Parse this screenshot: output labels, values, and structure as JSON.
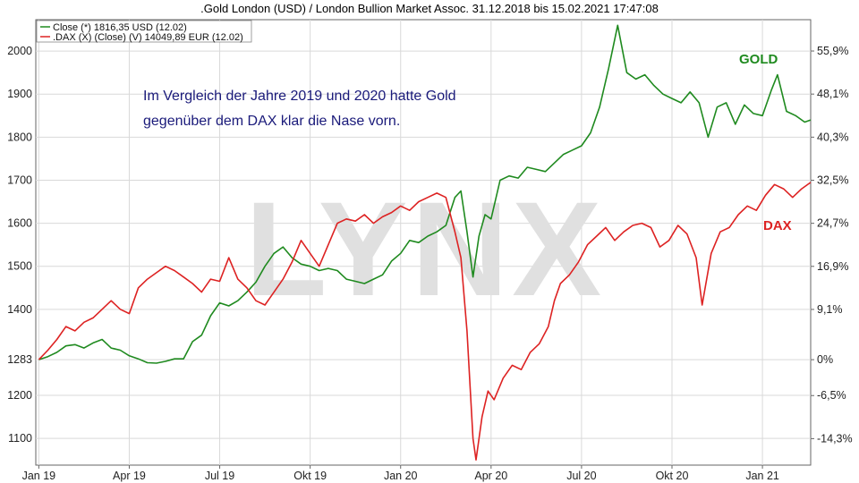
{
  "chart_data": {
    "type": "line",
    "title": ".Gold London (USD) / London Bullion Market Assoc. 31.12.2018 bis 15.02.2021 17:47:08",
    "watermark": "LYNX",
    "annotation_lines": [
      "Im Vergleich der Jahre 2019 und 2020 hatte Gold",
      "gegenüber dem DAX klar die Nase vorn."
    ],
    "x_tick_labels": [
      "Jan 19",
      "Apr 19",
      "Jul 19",
      "Okt 19",
      "Jan 20",
      "Apr 20",
      "Jul 20",
      "Okt 20",
      "Jan 21"
    ],
    "x_ticks_month_index": [
      0,
      3,
      6,
      9,
      12,
      15,
      18,
      21,
      24
    ],
    "x_range_month_index": [
      -0.1,
      25.6
    ],
    "y_left": {
      "ylim": [
        1038,
        2073
      ],
      "ticks": [
        1100,
        1200,
        1283,
        1400,
        1500,
        1600,
        1700,
        1800,
        1900,
        2000
      ],
      "tick_labels": [
        "1100",
        "1200",
        "1283",
        "1400",
        "1500",
        "1600",
        "1700",
        "1800",
        "1900",
        "2000"
      ]
    },
    "y_right": {
      "ticks": [
        -14.3,
        -6.5,
        0,
        9.1,
        16.9,
        24.7,
        32.5,
        40.3,
        48.1,
        55.9
      ],
      "tick_labels": [
        "-14,3%",
        "-6,5%",
        "0%",
        "9,1%",
        "16,9%",
        "24,7%",
        "32,5%",
        "40,3%",
        "48,1%",
        "55,9%"
      ],
      "base_value": 1283
    },
    "grid": true,
    "legend_position": "top-left",
    "series": [
      {
        "name": "GOLD",
        "legend": "Close (*) 1816,35 USD (12.02)",
        "label": "GOLD",
        "color": "#1f8a1f",
        "points": [
          [
            0,
            1283
          ],
          [
            0.3,
            1290
          ],
          [
            0.6,
            1300
          ],
          [
            0.9,
            1315
          ],
          [
            1.2,
            1318
          ],
          [
            1.5,
            1310
          ],
          [
            1.8,
            1322
          ],
          [
            2.1,
            1330
          ],
          [
            2.4,
            1310
          ],
          [
            2.7,
            1305
          ],
          [
            3.0,
            1292
          ],
          [
            3.3,
            1285
          ],
          [
            3.6,
            1276
          ],
          [
            3.9,
            1275
          ],
          [
            4.2,
            1279
          ],
          [
            4.5,
            1285
          ],
          [
            4.8,
            1285
          ],
          [
            5.1,
            1325
          ],
          [
            5.4,
            1340
          ],
          [
            5.7,
            1385
          ],
          [
            6.0,
            1415
          ],
          [
            6.3,
            1408
          ],
          [
            6.6,
            1420
          ],
          [
            6.9,
            1440
          ],
          [
            7.2,
            1463
          ],
          [
            7.5,
            1500
          ],
          [
            7.8,
            1530
          ],
          [
            8.1,
            1545
          ],
          [
            8.4,
            1520
          ],
          [
            8.7,
            1505
          ],
          [
            9.0,
            1500
          ],
          [
            9.3,
            1490
          ],
          [
            9.6,
            1495
          ],
          [
            9.9,
            1490
          ],
          [
            10.2,
            1470
          ],
          [
            10.5,
            1465
          ],
          [
            10.8,
            1460
          ],
          [
            11.1,
            1470
          ],
          [
            11.4,
            1480
          ],
          [
            11.7,
            1512
          ],
          [
            12.0,
            1530
          ],
          [
            12.3,
            1560
          ],
          [
            12.6,
            1555
          ],
          [
            12.9,
            1570
          ],
          [
            13.2,
            1580
          ],
          [
            13.5,
            1595
          ],
          [
            13.8,
            1660
          ],
          [
            14.0,
            1675
          ],
          [
            14.2,
            1580
          ],
          [
            14.4,
            1475
          ],
          [
            14.6,
            1570
          ],
          [
            14.8,
            1620
          ],
          [
            15.0,
            1610
          ],
          [
            15.3,
            1700
          ],
          [
            15.6,
            1710
          ],
          [
            15.9,
            1705
          ],
          [
            16.2,
            1730
          ],
          [
            16.5,
            1725
          ],
          [
            16.8,
            1720
          ],
          [
            17.1,
            1740
          ],
          [
            17.4,
            1760
          ],
          [
            17.7,
            1770
          ],
          [
            18.0,
            1780
          ],
          [
            18.3,
            1810
          ],
          [
            18.6,
            1870
          ],
          [
            18.9,
            1960
          ],
          [
            19.2,
            2060
          ],
          [
            19.5,
            1950
          ],
          [
            19.8,
            1935
          ],
          [
            20.1,
            1945
          ],
          [
            20.4,
            1920
          ],
          [
            20.7,
            1900
          ],
          [
            21.0,
            1890
          ],
          [
            21.3,
            1880
          ],
          [
            21.6,
            1905
          ],
          [
            21.9,
            1880
          ],
          [
            22.2,
            1800
          ],
          [
            22.5,
            1870
          ],
          [
            22.8,
            1880
          ],
          [
            23.1,
            1830
          ],
          [
            23.4,
            1875
          ],
          [
            23.7,
            1855
          ],
          [
            24.0,
            1850
          ],
          [
            24.3,
            1910
          ],
          [
            24.5,
            1945
          ],
          [
            24.8,
            1860
          ],
          [
            25.1,
            1850
          ],
          [
            25.4,
            1835
          ],
          [
            25.6,
            1840
          ]
        ]
      },
      {
        "name": "DAX",
        "legend": ".DAX (X) (Close) (V) 14049,89 EUR (12.02)",
        "label": "DAX",
        "color": "#dd2222",
        "points": [
          [
            0,
            1283
          ],
          [
            0.3,
            1305
          ],
          [
            0.6,
            1330
          ],
          [
            0.9,
            1360
          ],
          [
            1.2,
            1350
          ],
          [
            1.5,
            1370
          ],
          [
            1.8,
            1380
          ],
          [
            2.1,
            1400
          ],
          [
            2.4,
            1420
          ],
          [
            2.7,
            1400
          ],
          [
            3.0,
            1390
          ],
          [
            3.3,
            1450
          ],
          [
            3.6,
            1470
          ],
          [
            3.9,
            1485
          ],
          [
            4.2,
            1500
          ],
          [
            4.5,
            1490
          ],
          [
            4.8,
            1475
          ],
          [
            5.1,
            1460
          ],
          [
            5.4,
            1440
          ],
          [
            5.7,
            1470
          ],
          [
            6.0,
            1465
          ],
          [
            6.3,
            1520
          ],
          [
            6.6,
            1470
          ],
          [
            6.9,
            1450
          ],
          [
            7.2,
            1420
          ],
          [
            7.5,
            1410
          ],
          [
            7.8,
            1440
          ],
          [
            8.1,
            1470
          ],
          [
            8.4,
            1510
          ],
          [
            8.7,
            1560
          ],
          [
            9.0,
            1530
          ],
          [
            9.3,
            1500
          ],
          [
            9.6,
            1550
          ],
          [
            9.9,
            1600
          ],
          [
            10.2,
            1610
          ],
          [
            10.5,
            1605
          ],
          [
            10.8,
            1620
          ],
          [
            11.1,
            1600
          ],
          [
            11.4,
            1615
          ],
          [
            11.7,
            1625
          ],
          [
            12.0,
            1640
          ],
          [
            12.3,
            1630
          ],
          [
            12.6,
            1650
          ],
          [
            12.9,
            1660
          ],
          [
            13.2,
            1670
          ],
          [
            13.5,
            1660
          ],
          [
            13.8,
            1580
          ],
          [
            14.0,
            1520
          ],
          [
            14.2,
            1350
          ],
          [
            14.4,
            1100
          ],
          [
            14.5,
            1050
          ],
          [
            14.7,
            1150
          ],
          [
            14.9,
            1210
          ],
          [
            15.1,
            1190
          ],
          [
            15.4,
            1240
          ],
          [
            15.7,
            1270
          ],
          [
            16.0,
            1260
          ],
          [
            16.3,
            1300
          ],
          [
            16.6,
            1320
          ],
          [
            16.9,
            1360
          ],
          [
            17.1,
            1420
          ],
          [
            17.3,
            1460
          ],
          [
            17.6,
            1480
          ],
          [
            17.9,
            1510
          ],
          [
            18.2,
            1550
          ],
          [
            18.5,
            1570
          ],
          [
            18.8,
            1590
          ],
          [
            19.1,
            1560
          ],
          [
            19.4,
            1580
          ],
          [
            19.7,
            1595
          ],
          [
            20.0,
            1600
          ],
          [
            20.3,
            1590
          ],
          [
            20.6,
            1545
          ],
          [
            20.9,
            1560
          ],
          [
            21.2,
            1595
          ],
          [
            21.5,
            1575
          ],
          [
            21.8,
            1520
          ],
          [
            22.0,
            1410
          ],
          [
            22.3,
            1530
          ],
          [
            22.6,
            1580
          ],
          [
            22.9,
            1590
          ],
          [
            23.2,
            1620
          ],
          [
            23.5,
            1640
          ],
          [
            23.8,
            1630
          ],
          [
            24.1,
            1665
          ],
          [
            24.4,
            1690
          ],
          [
            24.7,
            1680
          ],
          [
            25.0,
            1660
          ],
          [
            25.3,
            1680
          ],
          [
            25.6,
            1695
          ]
        ]
      }
    ]
  }
}
